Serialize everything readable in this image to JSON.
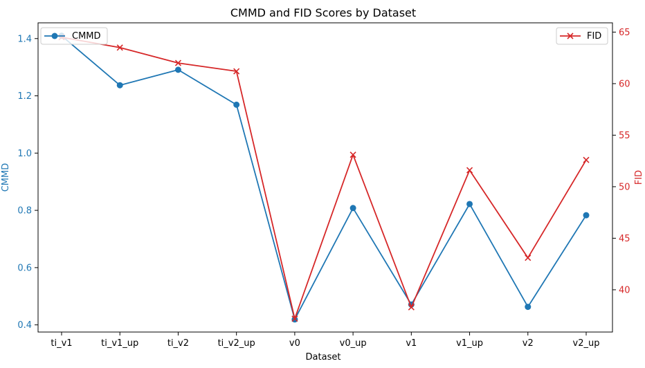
{
  "chart_data": {
    "type": "line",
    "title": "CMMD and FID Scores by Dataset",
    "xlabel": "Dataset",
    "categories": [
      "ti_v1",
      "ti_v1_up",
      "ti_v2",
      "ti_v2_up",
      "v0",
      "v0_up",
      "v1",
      "v1_up",
      "v2",
      "v2_up"
    ],
    "left_axis": {
      "label": "CMMD",
      "color": "#1f77b4",
      "ylim": [
        0.375,
        1.455
      ],
      "ticks": [
        "0.4",
        "0.6",
        "0.8",
        "1.0",
        "1.2",
        "1.4"
      ]
    },
    "right_axis": {
      "label": "FID",
      "color": "#d62728",
      "ylim": [
        35.9,
        65.9
      ],
      "ticks": [
        "40",
        "45",
        "50",
        "55",
        "60",
        "65"
      ]
    },
    "series": [
      {
        "name": "CMMD",
        "axis": "left",
        "color": "#1f77b4",
        "marker": "circle",
        "values": [
          1.41,
          1.237,
          1.291,
          1.169,
          0.419,
          0.808,
          0.471,
          0.822,
          0.463,
          0.783
        ]
      },
      {
        "name": "FID",
        "axis": "right",
        "color": "#d62728",
        "marker": "x",
        "values": [
          64.5,
          63.5,
          62.0,
          61.2,
          37.2,
          53.1,
          38.3,
          51.6,
          43.1,
          52.6
        ]
      }
    ],
    "legends": [
      {
        "series": "CMMD",
        "placement": "top-left"
      },
      {
        "series": "FID",
        "placement": "top-right"
      }
    ],
    "grid": false
  }
}
